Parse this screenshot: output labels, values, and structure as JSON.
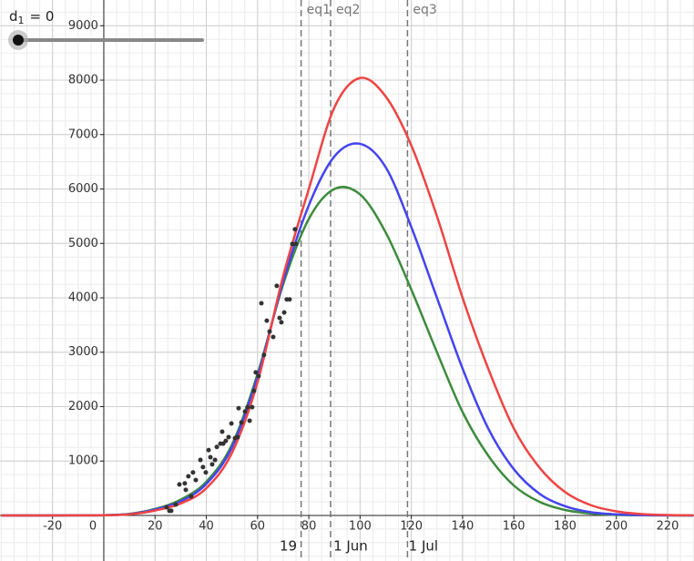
{
  "chart_data": {
    "type": "line",
    "xlim": [
      -40.5,
      230.3
    ],
    "ylim": [
      -837,
      9473
    ],
    "xticks": [
      -20,
      0,
      20,
      40,
      60,
      80,
      100,
      120,
      140,
      160,
      180,
      200,
      220
    ],
    "yticks": [
      1000,
      2000,
      3000,
      4000,
      5000,
      6000,
      7000,
      8000,
      9000
    ],
    "grid": true,
    "x": [
      -40,
      -30,
      -20,
      -10,
      0,
      10,
      20,
      30,
      40,
      50,
      60,
      70,
      80,
      90,
      100,
      110,
      120,
      130,
      140,
      150,
      160,
      170,
      180,
      190,
      200,
      210,
      220,
      230
    ],
    "series": [
      {
        "color": "#3d8b3d",
        "values": [
          0,
          0,
          0,
          1,
          5,
          30,
          120,
          290,
          620,
          1300,
          2600,
          4250,
          5450,
          6000,
          5900,
          5200,
          4150,
          3000,
          1900,
          1100,
          550,
          250,
          100,
          35,
          10,
          3,
          1,
          0
        ]
      },
      {
        "color": "#4444ee",
        "values": [
          0,
          0,
          0,
          1,
          4,
          25,
          110,
          260,
          580,
          1250,
          2550,
          4300,
          5700,
          6600,
          6830,
          6400,
          5300,
          4000,
          2700,
          1600,
          850,
          400,
          170,
          60,
          20,
          6,
          2,
          0
        ]
      },
      {
        "color": "#ee4444",
        "values": [
          0,
          0,
          0,
          1,
          3,
          20,
          90,
          220,
          500,
          1150,
          2450,
          4400,
          6000,
          7500,
          8040,
          7700,
          6800,
          5500,
          4000,
          2700,
          1600,
          880,
          430,
          190,
          75,
          25,
          8,
          2
        ]
      }
    ],
    "points": {
      "color": "#333333",
      "x": [
        24.5,
        25.6,
        26.3,
        28.1,
        29.5,
        31.6,
        32,
        33,
        34.1,
        34.8,
        35.9,
        37.7,
        38.7,
        39.8,
        40.9,
        41.6,
        42.3,
        43.4,
        44.1,
        45.5,
        46.2,
        46.6,
        47.6,
        48.7,
        49.8,
        51.2,
        52.2,
        52.6,
        53.7,
        55.1,
        56.1,
        56.9,
        57.9,
        58.6,
        59.3,
        60.4,
        61.5,
        62.5,
        63.6,
        64.7,
        66.1,
        67.5,
        68.6,
        69.3,
        70.4,
        71.4,
        72.5,
        73.6,
        75,
        74.6
      ],
      "y": [
        150,
        85,
        85,
        200,
        570,
        590,
        470,
        720,
        350,
        790,
        650,
        1020,
        890,
        790,
        1200,
        1070,
        940,
        1020,
        1260,
        1320,
        1540,
        1320,
        1370,
        1440,
        1690,
        1420,
        1440,
        1970,
        1710,
        1910,
        1990,
        1740,
        1990,
        2290,
        2630,
        2560,
        3900,
        2950,
        3580,
        3380,
        3280,
        4220,
        3630,
        3550,
        3730,
        3970,
        3970,
        4990,
        4990,
        5260
      ]
    },
    "vlines": [
      {
        "x": 77,
        "label": "eq1"
      },
      {
        "x": 88.5,
        "label": "eq2"
      },
      {
        "x": 118.5,
        "label": "eq3"
      }
    ],
    "x2ticks": [
      {
        "value": 72,
        "label": "19"
      },
      {
        "value": 96.3,
        "label": "1 Jun"
      },
      {
        "value": 124.7,
        "label": "1 Jul"
      }
    ],
    "slider": {
      "name": "d",
      "subscript": "1",
      "text": "= 0",
      "value": 0
    }
  }
}
